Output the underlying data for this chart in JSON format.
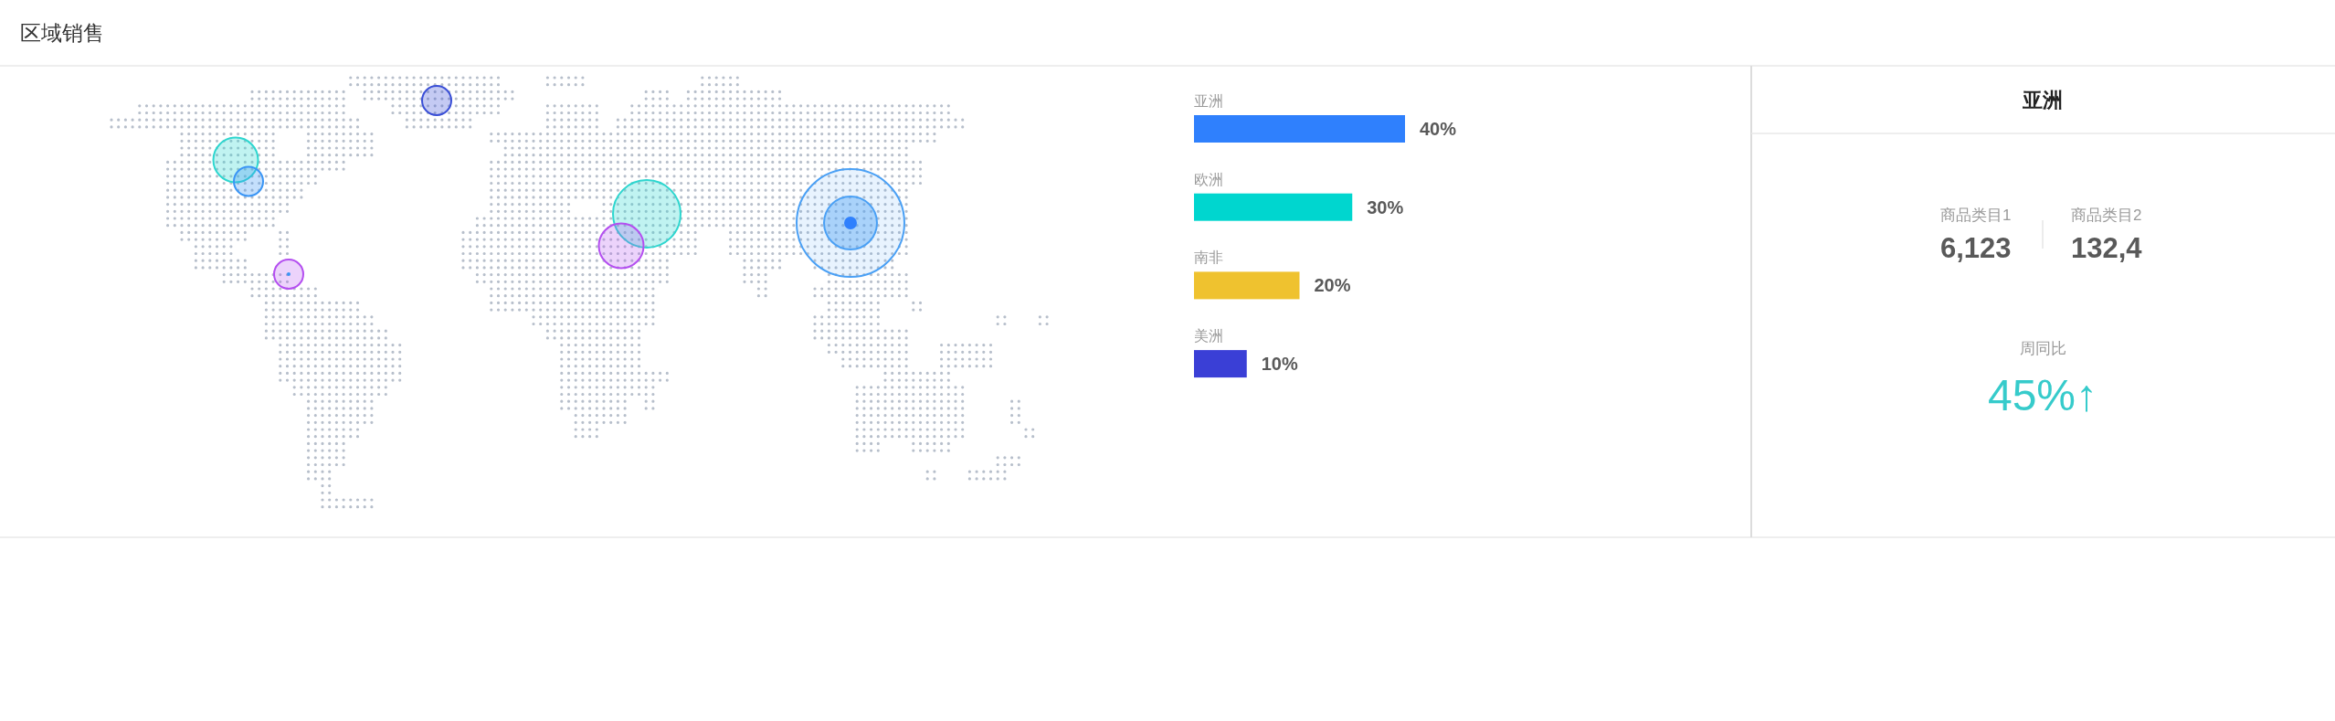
{
  "chart_data": [
    {
      "type": "other",
      "title": "区域销售"
    },
    {
      "type": "bar",
      "orientation": "horizontal",
      "categories": [
        "亚洲",
        "欧洲",
        "南非",
        "美洲"
      ],
      "values": [
        40,
        30,
        20,
        10
      ],
      "colors": [
        "#2f80fd",
        "#00d6cf",
        "#efc22f",
        "#3a3fd6"
      ],
      "value_labels": [
        "40%",
        "30%",
        "20%",
        "10%"
      ]
    },
    {
      "type": "other",
      "title": "亚洲",
      "annotations": [
        "商品类目1",
        "6,123",
        "商品类目2",
        "132,4",
        "周同比",
        "45%↑"
      ]
    }
  ]
}
